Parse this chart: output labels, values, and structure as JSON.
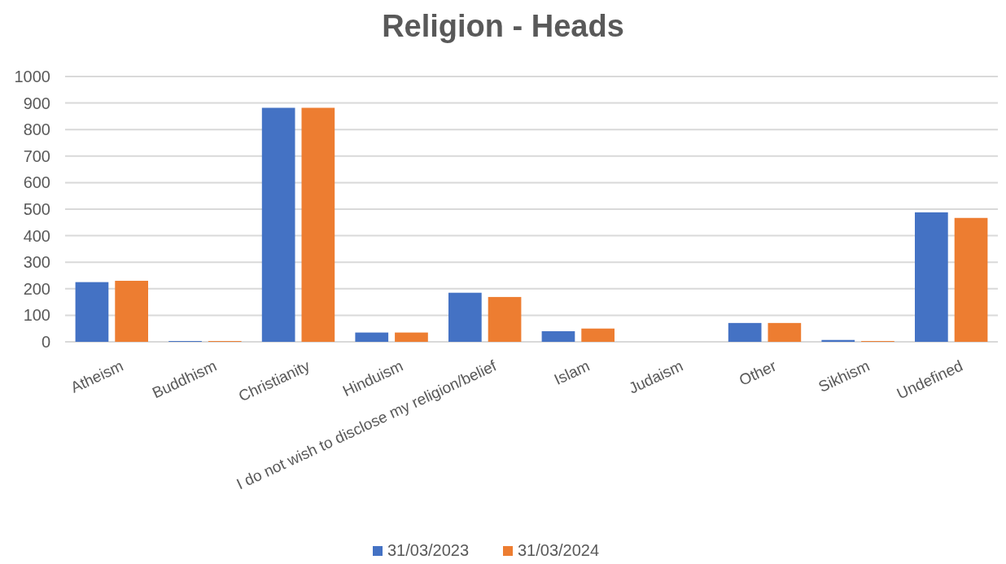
{
  "chart_data": {
    "type": "bar",
    "title": "Religion - Heads",
    "categories": [
      "Atheism",
      "Buddhism",
      "Christianity",
      "Hinduism",
      "I do not wish to disclose my religion/belief",
      "Islam",
      "Judaism",
      "Other",
      "Sikhism",
      "Undefined"
    ],
    "series": [
      {
        "name": "31/03/2023",
        "color": "#4472c4",
        "values": [
          225,
          3,
          882,
          35,
          185,
          40,
          0,
          71,
          7,
          488
        ]
      },
      {
        "name": "31/03/2024",
        "color": "#ed7d31",
        "values": [
          230,
          3,
          882,
          35,
          169,
          50,
          0,
          71,
          3,
          467
        ]
      }
    ],
    "ylim": [
      0,
      1000
    ],
    "yticks": [
      0,
      100,
      200,
      300,
      400,
      500,
      600,
      700,
      800,
      900,
      1000
    ],
    "grid": "y",
    "legend": "bottom"
  }
}
